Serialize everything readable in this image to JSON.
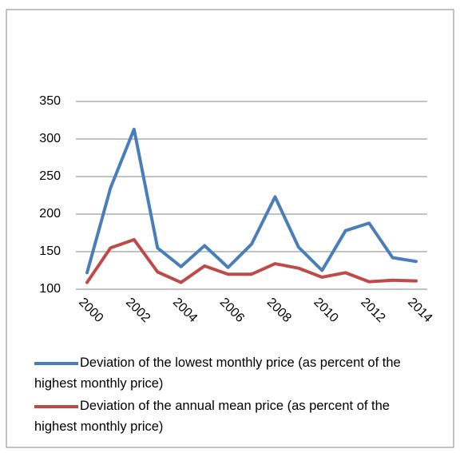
{
  "chart_data": {
    "type": "line",
    "categories": [
      "2000",
      null,
      "2002",
      null,
      "2004",
      null,
      "2006",
      null,
      "2008",
      null,
      "2010",
      null,
      "2012",
      null,
      "2014"
    ],
    "series": [
      {
        "name": "Deviation of the lowest monthly price (as percent of the highest monthly price)",
        "color": "#4a7ebb",
        "values": [
          122,
          235,
          313,
          155,
          130,
          158,
          129,
          160,
          223,
          156,
          125,
          178,
          188,
          142,
          137
        ]
      },
      {
        "name": "Deviation of the annual mean price (as percent of the highest monthly price)",
        "color": "#be4b48",
        "values": [
          109,
          155,
          166,
          123,
          109,
          131,
          120,
          120,
          134,
          128,
          116,
          122,
          110,
          112,
          111
        ]
      }
    ],
    "ylim": [
      100,
      350
    ],
    "yticks": [
      100,
      150,
      200,
      250,
      300,
      350
    ],
    "grid": true,
    "legend": "bottom"
  }
}
